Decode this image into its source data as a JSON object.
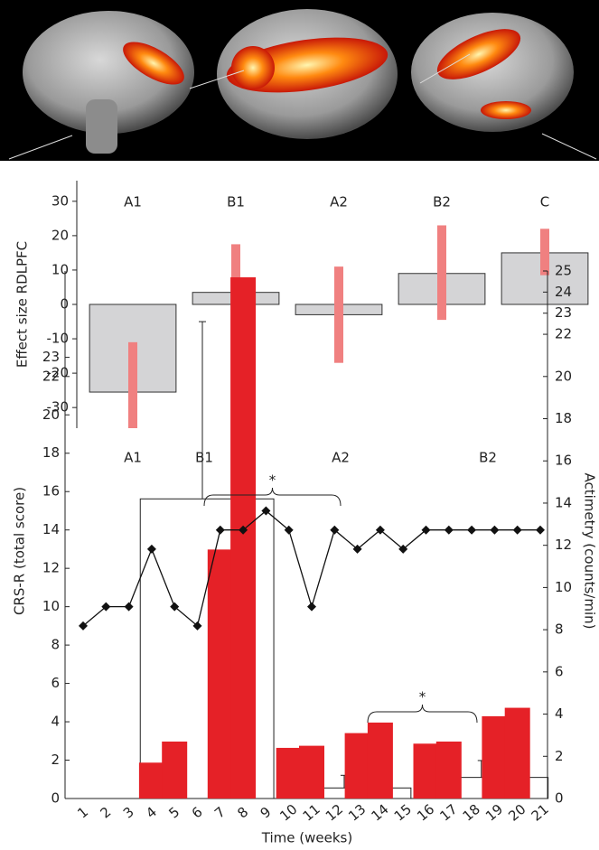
{
  "chart_data": [
    {
      "type": "bar",
      "ylabel": "Effect size RDLPFC",
      "categories": [
        "A1",
        "B1",
        "A2",
        "B2",
        "C"
      ],
      "values": [
        -25.5,
        3.5,
        -3,
        9,
        15
      ],
      "interval_low": [
        -36,
        -10,
        -17,
        -4.5,
        8.5
      ],
      "interval_high": [
        -11,
        17.5,
        11,
        23,
        22
      ],
      "color": "#d4d4d6",
      "interval_color": "#f08080",
      "ylim": [
        -36,
        36
      ],
      "yticks": [
        -30,
        -20,
        -10,
        0,
        10,
        20,
        30
      ]
    },
    {
      "type": "bar_line",
      "xlabel": "Time (weeks)",
      "ylabel": "CRS-R (total score)",
      "y2label": "Actimetry (counts/min)",
      "categories": [
        "1",
        "2",
        "3",
        "4",
        "5",
        "6",
        "7",
        "8",
        "9",
        "10",
        "11",
        "12",
        "13",
        "14",
        "15",
        "16",
        "17",
        "18",
        "19",
        "20",
        "21"
      ],
      "series": [
        {
          "type": "bar",
          "axis": "y2",
          "color": "#e52127",
          "values": [
            null,
            null,
            null,
            1.7,
            2.7,
            null,
            11.8,
            24.7,
            null,
            2.4,
            2.5,
            null,
            3.1,
            3.6,
            null,
            2.6,
            2.7,
            null,
            3.9,
            4.3,
            null
          ]
        },
        {
          "type": "line",
          "axis": "y",
          "color": "#111111",
          "values": [
            9,
            10,
            10,
            13,
            10,
            9,
            14,
            14,
            15,
            14,
            10,
            14,
            13,
            14,
            13,
            14,
            14,
            14,
            14,
            14,
            14
          ]
        }
      ],
      "phase_labels": [
        "A1",
        "B1",
        "A2",
        "B2"
      ],
      "phase_means": [
        14.2,
        0.5,
        1.0
      ],
      "phase_upper": [
        22.6,
        1.1,
        1.8
      ],
      "annotations": [
        "*",
        "*"
      ],
      "ylim": [
        0,
        27.5
      ],
      "yticks": [
        0,
        2,
        4,
        6,
        8,
        10,
        12,
        14,
        16,
        18,
        20,
        22,
        23
      ],
      "y2lim": [
        0,
        25
      ],
      "y2ticks": [
        0,
        2,
        4,
        6,
        8,
        10,
        12,
        14,
        16,
        18,
        20,
        22,
        23,
        24,
        25
      ]
    }
  ]
}
